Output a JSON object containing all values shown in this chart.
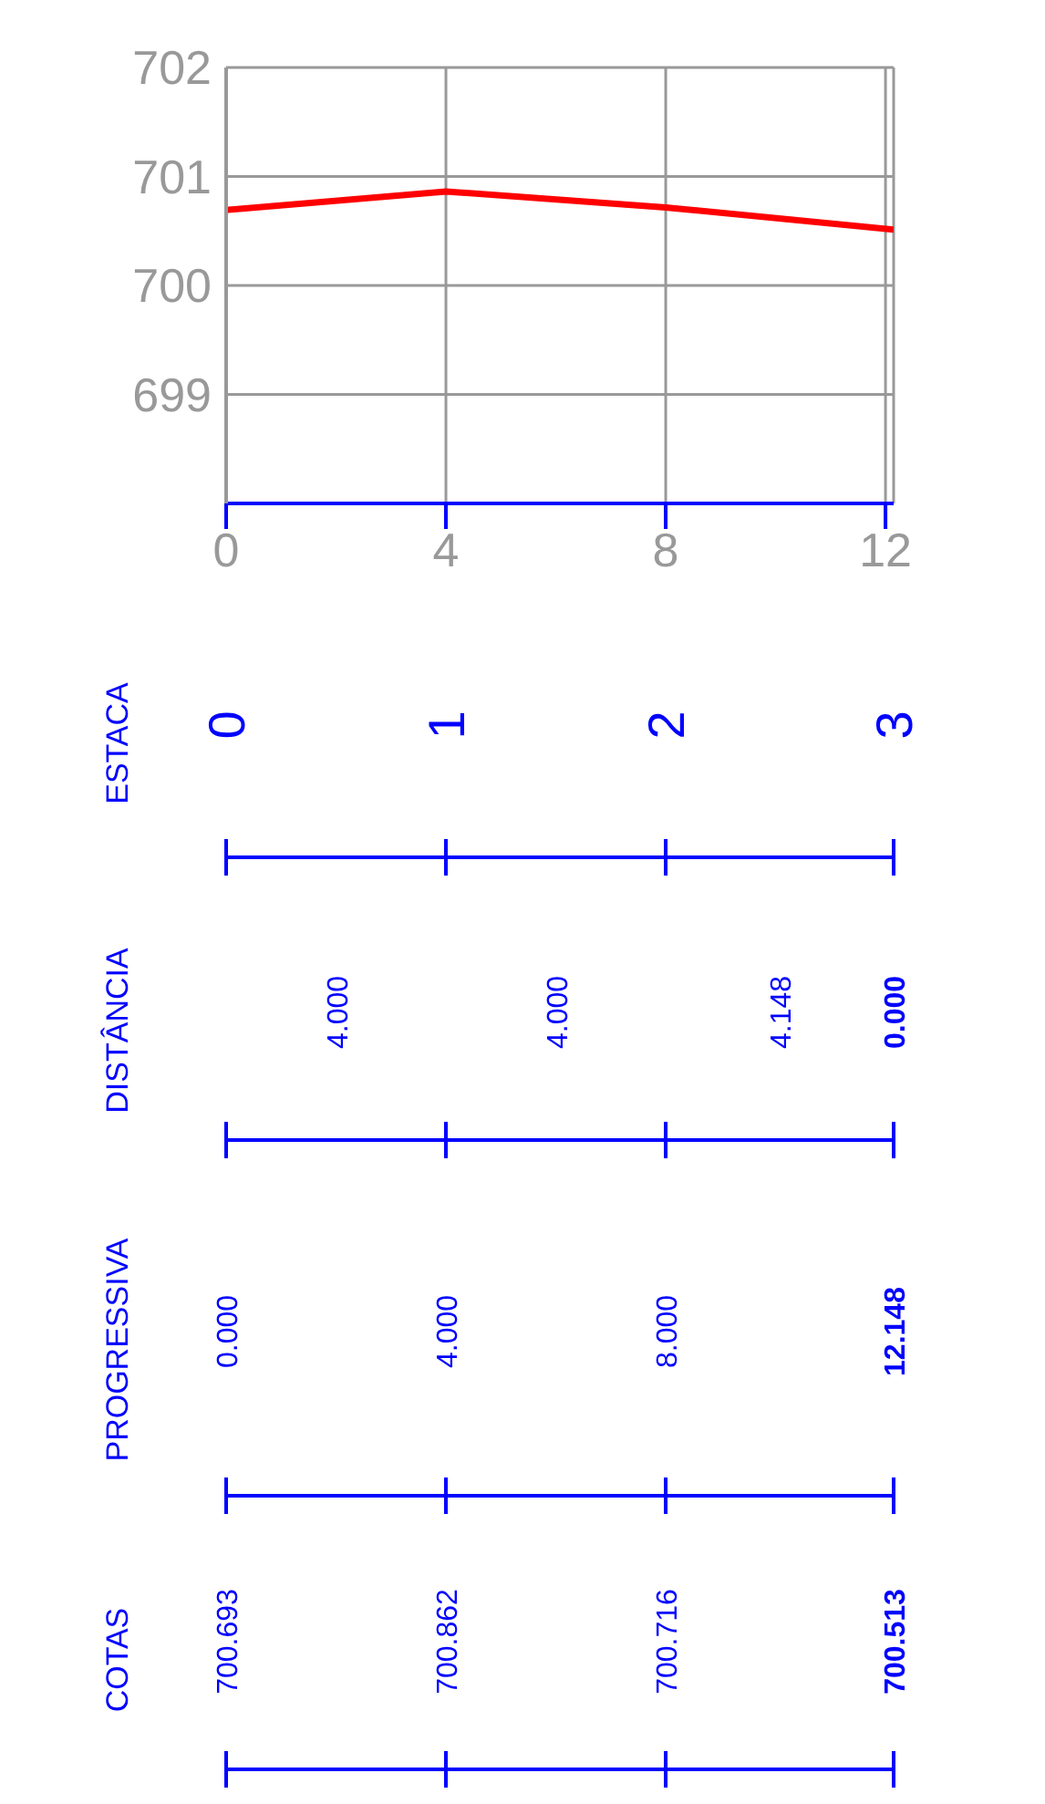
{
  "chart_data": {
    "type": "line",
    "x": [
      0,
      4,
      8,
      12.148
    ],
    "series": [
      {
        "color": "#ff0000",
        "values": [
          700.693,
          700.862,
          700.716,
          700.513
        ]
      }
    ],
    "xlim": [
      0,
      12.148
    ],
    "xticks": [
      0,
      4,
      8,
      12
    ],
    "ylim": [
      698,
      702
    ],
    "yticks": [
      699,
      700,
      701,
      702
    ],
    "grid": true,
    "marker": "none",
    "annotations": [
      "ESTACA",
      "0",
      "1",
      "2",
      "3",
      "DISTÂNCIA",
      "4.000",
      "4.000",
      "4.148",
      "0.000",
      "PROGRESSIVA",
      "0.000",
      "4.000",
      "8.000",
      "12.148",
      "COTAS",
      "700.693",
      "700.862",
      "700.716",
      "700.513"
    ]
  }
}
